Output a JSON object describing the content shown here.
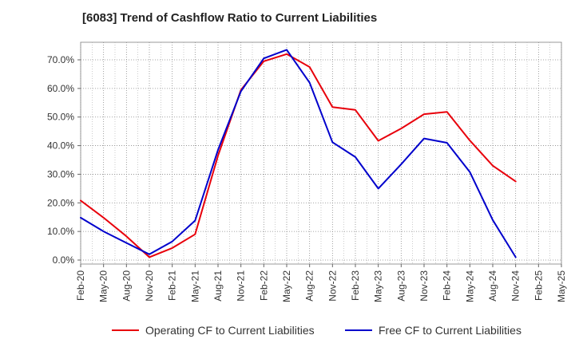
{
  "chart_data": {
    "type": "line",
    "title": "[6083]  Trend of Cashflow Ratio to Current Liabilities",
    "xlabel": "",
    "ylabel": "",
    "x": [
      "Feb-20",
      "May-20",
      "Aug-20",
      "Nov-20",
      "Feb-21",
      "May-21",
      "Aug-21",
      "Nov-21",
      "Feb-22",
      "May-22",
      "Aug-22",
      "Nov-22",
      "Feb-23",
      "May-23",
      "Aug-23",
      "Nov-23",
      "Feb-24",
      "May-24",
      "Aug-24",
      "Nov-24",
      "Feb-25",
      "May-25"
    ],
    "y_ticks": [
      "0.0%",
      "10.0%",
      "20.0%",
      "30.0%",
      "40.0%",
      "50.0%",
      "60.0%",
      "70.0%"
    ],
    "ylim": [
      0,
      75
    ],
    "grid": "dotted",
    "legend_position": "bottom",
    "series": [
      {
        "name": "Operating CF to Current Liabilities",
        "color": "#e8000b",
        "values": [
          20.8,
          14.8,
          8.3,
          1.0,
          4.2,
          9.0,
          36.5,
          59.5,
          69.5,
          72.0,
          67.5,
          53.5,
          52.5,
          41.7,
          46.0,
          51.0,
          51.8,
          41.8,
          33.0,
          27.5,
          null,
          null
        ]
      },
      {
        "name": "Free CF to Current Liabilities",
        "color": "#0000cc",
        "values": [
          14.8,
          10.0,
          6.0,
          2.0,
          6.5,
          13.8,
          38.5,
          59.0,
          70.5,
          73.5,
          62.0,
          41.2,
          36.0,
          25.0,
          33.5,
          42.5,
          41.0,
          30.8,
          14.0,
          1.0,
          null,
          null
        ]
      }
    ]
  }
}
